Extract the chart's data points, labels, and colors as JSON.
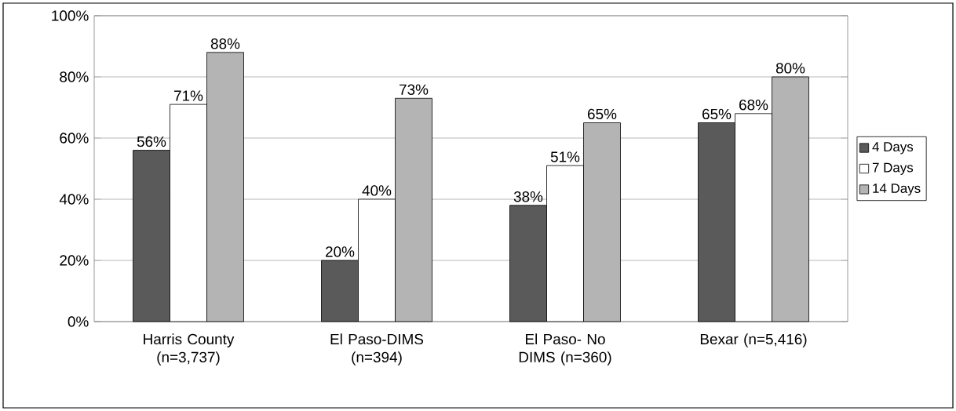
{
  "chart_data": {
    "type": "bar",
    "categories": [
      "Harris County (n=3,737)",
      "El Paso-DIMS (n=394)",
      "El Paso- No DIMS (n=360)",
      "Bexar (n=5,416)"
    ],
    "series": [
      {
        "name": "4 Days",
        "color": "#5a5a5a",
        "values": [
          56,
          20,
          38,
          65
        ],
        "value_labels": [
          "56%",
          "20%",
          "38%",
          "65%"
        ]
      },
      {
        "name": "7 Days",
        "color": "#ffffff",
        "values": [
          71,
          40,
          51,
          68
        ],
        "value_labels": [
          "71%",
          "40%",
          "51%",
          "68%"
        ]
      },
      {
        "name": "14 Days",
        "color": "#b4b4b4",
        "values": [
          88,
          73,
          65,
          80
        ],
        "value_labels": [
          "88%",
          "73%",
          "65%",
          "80%"
        ]
      }
    ],
    "ylim": [
      0,
      100
    ],
    "yticks": [
      {
        "value": 0,
        "label": "0%"
      },
      {
        "value": 20,
        "label": "20%"
      },
      {
        "value": 40,
        "label": "40%"
      },
      {
        "value": 60,
        "label": "60%"
      },
      {
        "value": 80,
        "label": "80%"
      },
      {
        "value": 100,
        "label": "100%"
      }
    ],
    "grid": "y",
    "legend": "right"
  }
}
